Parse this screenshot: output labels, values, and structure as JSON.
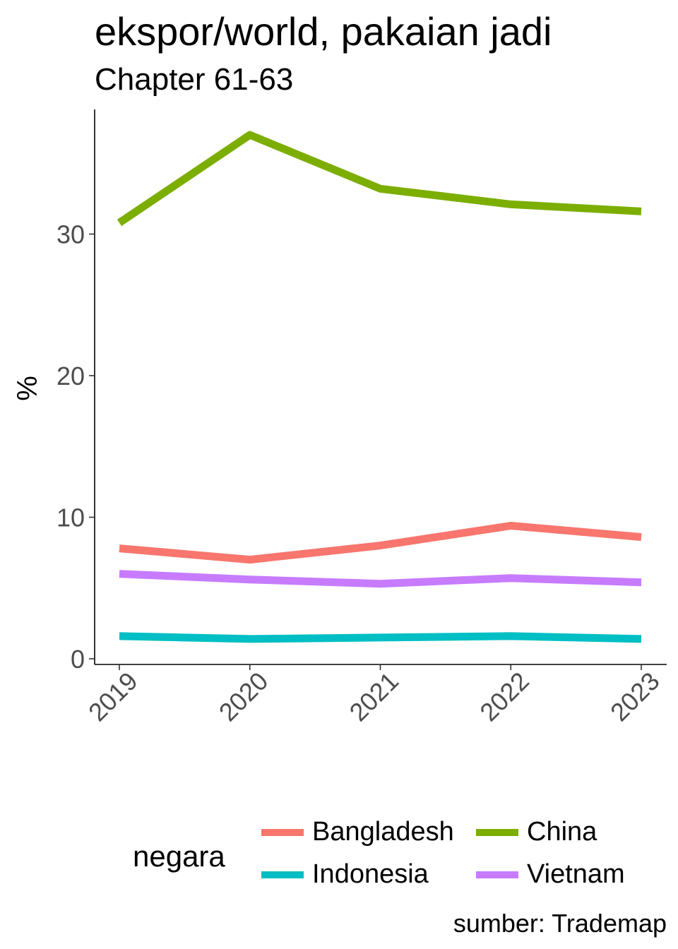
{
  "chart_data": {
    "type": "line",
    "title": "ekspor/world, pakaian jadi",
    "subtitle": "Chapter 61-63",
    "caption": "sumber: Trademap",
    "xlabel": "",
    "ylabel": "%",
    "x": [
      "2019",
      "2020",
      "2021",
      "2022",
      "2023"
    ],
    "yticks": [
      0,
      10,
      20,
      30
    ],
    "ylim": [
      0,
      38.5
    ],
    "grid": false,
    "legend_title": "negara",
    "legend_position": "bottom",
    "series": [
      {
        "name": "Bangladesh",
        "color": "#F8766D",
        "values": [
          7.8,
          7.0,
          8.0,
          9.4,
          8.6
        ]
      },
      {
        "name": "China",
        "color": "#7CAE00",
        "values": [
          30.8,
          37.0,
          33.2,
          32.1,
          31.6
        ]
      },
      {
        "name": "Indonesia",
        "color": "#00BFC4",
        "values": [
          1.6,
          1.4,
          1.5,
          1.6,
          1.4
        ]
      },
      {
        "name": "Vietnam",
        "color": "#C77CFF",
        "values": [
          6.0,
          5.6,
          5.3,
          5.7,
          5.4
        ]
      }
    ]
  }
}
